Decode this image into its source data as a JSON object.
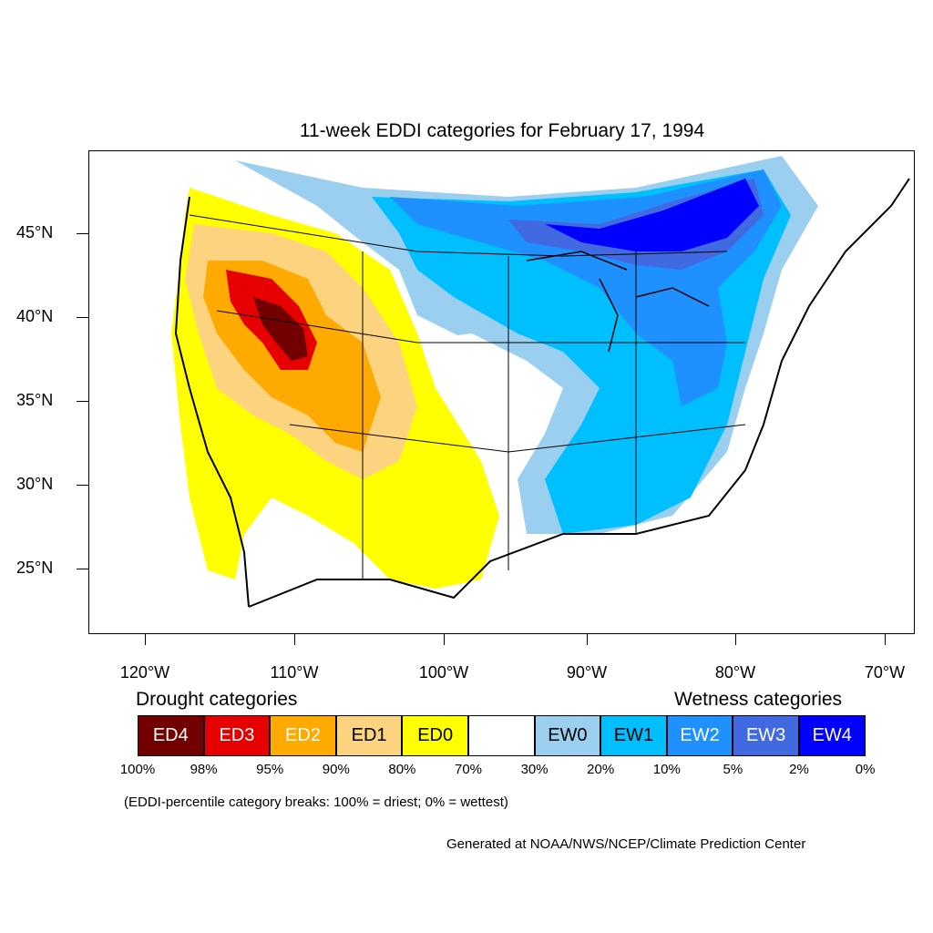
{
  "title": "11-week EDDI categories for February 17, 1994",
  "axes": {
    "lat_labels": [
      "45°N",
      "40°N",
      "35°N",
      "30°N",
      "25°N"
    ],
    "lon_labels": [
      "120°W",
      "110°W",
      "100°W",
      "90°W",
      "80°W",
      "70°W"
    ]
  },
  "legend": {
    "drought_heading": "Drought categories",
    "wetness_heading": "Wetness categories",
    "categories": [
      {
        "label": "ED4",
        "color": "#730000",
        "text_color": "#ffffff"
      },
      {
        "label": "ED3",
        "color": "#e60000",
        "text_color": "#ffffff"
      },
      {
        "label": "ED2",
        "color": "#ffaa00",
        "text_color": "#ffffff"
      },
      {
        "label": "ED1",
        "color": "#fcd37f",
        "text_color": "#000000"
      },
      {
        "label": "ED0",
        "color": "#ffff00",
        "text_color": "#000000"
      },
      {
        "label": "",
        "color": "#ffffff",
        "text_color": "#000000"
      },
      {
        "label": "EW0",
        "color": "#9bcff0",
        "text_color": "#000000"
      },
      {
        "label": "EW1",
        "color": "#00bfff",
        "text_color": "#000000"
      },
      {
        "label": "EW2",
        "color": "#1e90ff",
        "text_color": "#ffffff"
      },
      {
        "label": "EW3",
        "color": "#4169e1",
        "text_color": "#ffffff"
      },
      {
        "label": "EW4",
        "color": "#0000ff",
        "text_color": "#ffffff"
      }
    ],
    "breaks": [
      "100%",
      "98%",
      "95%",
      "90%",
      "80%",
      "70%",
      "30%",
      "20%",
      "10%",
      "5%",
      "2%",
      "0%"
    ]
  },
  "note": "(EDDI-percentile category breaks: 100% = driest; 0% = wettest)",
  "credit": "Generated at NOAA/NWS/NCEP/Climate Prediction Center"
}
